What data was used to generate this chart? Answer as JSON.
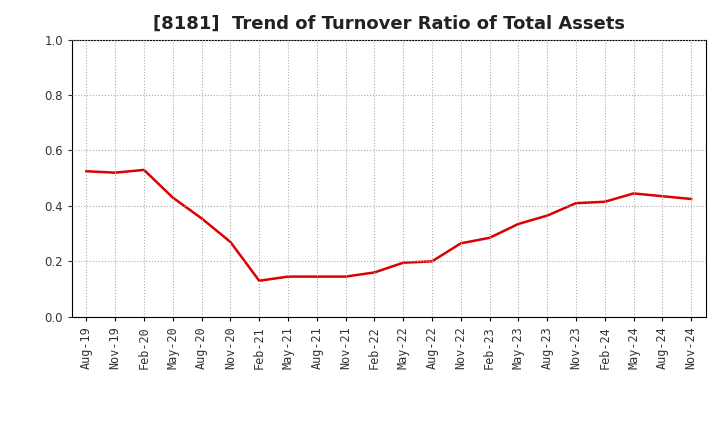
{
  "title": "[8181]  Trend of Turnover Ratio of Total Assets",
  "x_labels": [
    "Aug-19",
    "Nov-19",
    "Feb-20",
    "May-20",
    "Aug-20",
    "Nov-20",
    "Feb-21",
    "May-21",
    "Aug-21",
    "Nov-21",
    "Feb-22",
    "May-22",
    "Aug-22",
    "Nov-22",
    "Feb-23",
    "May-23",
    "Aug-23",
    "Nov-23",
    "Feb-24",
    "May-24",
    "Aug-24",
    "Nov-24"
  ],
  "y_values": [
    0.525,
    0.52,
    0.53,
    0.43,
    0.355,
    0.27,
    0.13,
    0.145,
    0.145,
    0.145,
    0.16,
    0.195,
    0.2,
    0.265,
    0.285,
    0.335,
    0.365,
    0.41,
    0.415,
    0.445,
    0.435,
    0.425
  ],
  "line_color": "#dd0000",
  "line_width": 1.8,
  "ylim": [
    0.0,
    1.0
  ],
  "yticks": [
    0.0,
    0.2,
    0.4,
    0.6,
    0.8,
    1.0
  ],
  "grid_color": "#aaaaaa",
  "grid_style": "dotted",
  "background_color": "#ffffff",
  "title_fontsize": 13,
  "tick_fontsize": 8.5,
  "title_color": "#222222"
}
